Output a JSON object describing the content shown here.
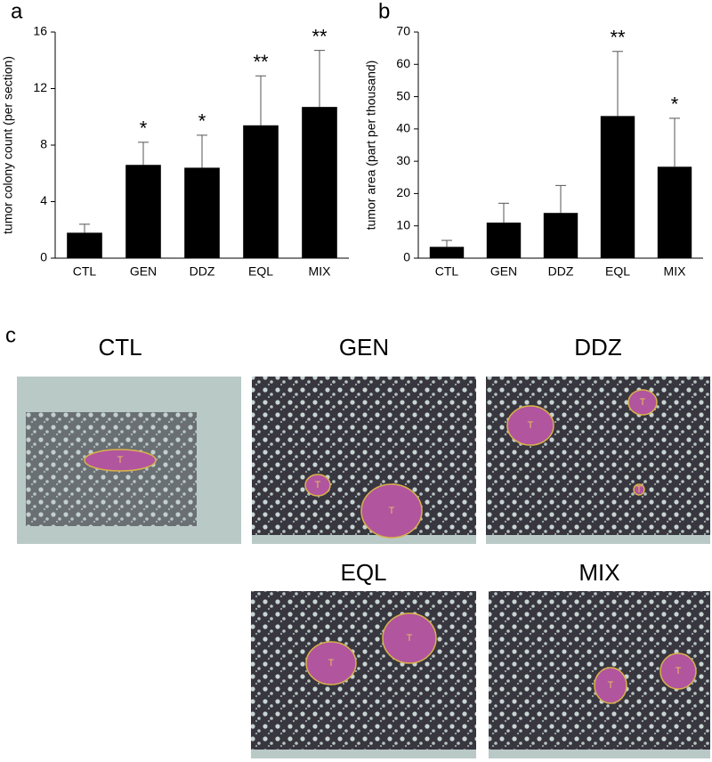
{
  "panel_labels": [
    "a",
    "b",
    "c"
  ],
  "chart_data": [
    {
      "type": "bar",
      "y_label": "tumor colony count (per section)",
      "categories": [
        "CTL",
        "GEN",
        "DDZ",
        "EQL",
        "MIX"
      ],
      "values": [
        1.8,
        6.6,
        6.4,
        9.4,
        10.7
      ],
      "errors": [
        0.6,
        1.6,
        2.3,
        3.5,
        4.0
      ],
      "annotations": [
        null,
        "*",
        "*",
        "**",
        "**"
      ],
      "color": "#000000",
      "ylim": [
        0,
        16
      ],
      "yticks": [
        0,
        4,
        8,
        12,
        16
      ]
    },
    {
      "type": "bar",
      "y_label": "tumor area (part per thousand)",
      "categories": [
        "CTL",
        "GEN",
        "DDZ",
        "EQL",
        "MIX"
      ],
      "values": [
        3.5,
        11,
        14,
        44,
        28.3
      ],
      "errors": [
        2,
        6,
        8.5,
        20,
        15
      ],
      "annotations": [
        null,
        null,
        null,
        "**",
        "*"
      ],
      "color": "#000000",
      "ylim": [
        0,
        70
      ],
      "yticks": [
        0,
        10,
        20,
        30,
        40,
        50,
        60,
        70
      ]
    }
  ],
  "micrographs": [
    {
      "label": "CTL",
      "marks": [
        "T"
      ]
    },
    {
      "label": "GEN",
      "marks": [
        "T",
        "T"
      ]
    },
    {
      "label": "DDZ",
      "marks": [
        "T",
        "T",
        "T"
      ]
    },
    {
      "label": "EQL",
      "marks": [
        "T",
        "T"
      ]
    },
    {
      "label": "MIX",
      "marks": [
        "T",
        "T"
      ]
    }
  ]
}
